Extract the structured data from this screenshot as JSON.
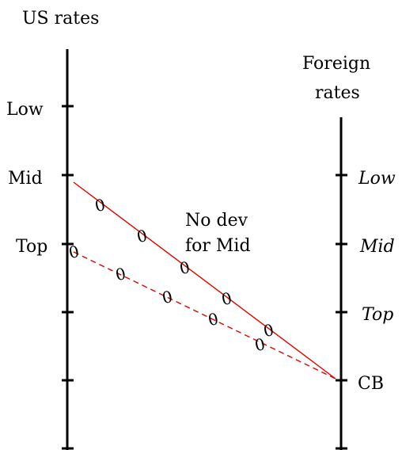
{
  "left_axis": {
    "title": "US rates",
    "ticks": [
      "Low",
      "Mid",
      "Top"
    ]
  },
  "right_axis": {
    "title_line1": "Foreign",
    "title_line2": "rates",
    "ticks": [
      "Low",
      "Mid",
      "Top",
      "CB"
    ]
  },
  "annotation": {
    "line1": "No dev",
    "line2": "for Mid"
  },
  "zero_label": "0",
  "colors": {
    "axis": "#000000",
    "line": "#e00000"
  }
}
